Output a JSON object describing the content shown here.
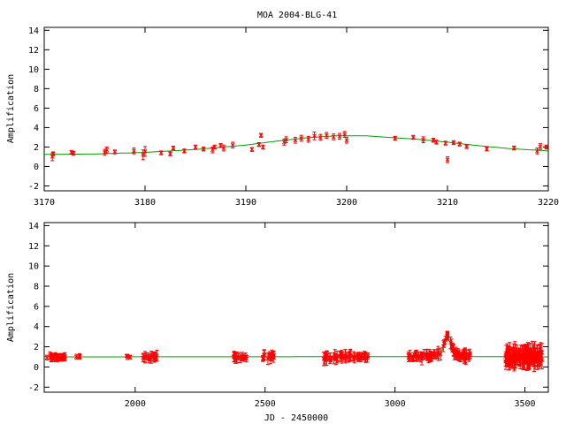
{
  "title": "MOA 2004-BLG-41",
  "xlabel": "JD - 2450000",
  "colors": {
    "data": "#ff0000",
    "model": "#00a000",
    "axes": "#000000"
  },
  "chart_data": [
    {
      "type": "scatter",
      "ylabel": "Amplification",
      "xlim": [
        3170,
        3220
      ],
      "ylim": [
        -2.5,
        14.3
      ],
      "xticks": [
        3170,
        3180,
        3190,
        3200,
        3210,
        3220
      ],
      "yticks": [
        -2,
        0,
        2,
        4,
        6,
        8,
        10,
        12,
        14
      ],
      "grid": false,
      "model": {
        "name": "",
        "x": [
          3170,
          3175,
          3180,
          3185,
          3190,
          3193,
          3196,
          3199,
          3202,
          3204,
          3207,
          3210,
          3213,
          3216,
          3220
        ],
        "y": [
          1.25,
          1.28,
          1.45,
          1.75,
          2.2,
          2.6,
          2.95,
          3.15,
          3.15,
          3.0,
          2.8,
          2.5,
          2.15,
          1.85,
          1.6
        ]
      },
      "series": [
        {
          "name": "",
          "points": [
            [
              3170.8,
              1.0,
              0.4
            ],
            [
              3170.9,
              1.3,
              0.2
            ],
            [
              3172.7,
              1.45,
              0.2
            ],
            [
              3172.9,
              1.35,
              0.2
            ],
            [
              3176.0,
              1.45,
              0.3
            ],
            [
              3176.2,
              1.7,
              0.3
            ],
            [
              3177.0,
              1.5,
              0.2
            ],
            [
              3178.9,
              1.6,
              0.3
            ],
            [
              3179.8,
              1.2,
              0.5
            ],
            [
              3180.0,
              1.55,
              0.5
            ],
            [
              3181.6,
              1.4,
              0.2
            ],
            [
              3182.5,
              1.3,
              0.2
            ],
            [
              3182.8,
              1.9,
              0.2
            ],
            [
              3183.9,
              1.6,
              0.2
            ],
            [
              3185.0,
              2.0,
              0.2
            ],
            [
              3185.8,
              1.8,
              0.2
            ],
            [
              3186.7,
              1.7,
              0.3
            ],
            [
              3186.9,
              2.0,
              0.2
            ],
            [
              3187.5,
              2.15,
              0.2
            ],
            [
              3187.8,
              1.9,
              0.3
            ],
            [
              3188.7,
              2.2,
              0.3
            ],
            [
              3190.6,
              1.75,
              0.2
            ],
            [
              3191.3,
              2.25,
              0.2
            ],
            [
              3191.5,
              3.2,
              0.2
            ],
            [
              3191.7,
              2.0,
              0.2
            ],
            [
              3193.8,
              2.5,
              0.3
            ],
            [
              3194.0,
              2.75,
              0.3
            ],
            [
              3194.9,
              2.7,
              0.3
            ],
            [
              3195.5,
              2.9,
              0.3
            ],
            [
              3196.2,
              2.8,
              0.3
            ],
            [
              3196.8,
              3.15,
              0.4
            ],
            [
              3197.4,
              3.0,
              0.3
            ],
            [
              3198.0,
              3.2,
              0.3
            ],
            [
              3198.7,
              3.05,
              0.3
            ],
            [
              3199.3,
              3.1,
              0.3
            ],
            [
              3199.8,
              3.3,
              0.3
            ],
            [
              3200.0,
              2.7,
              0.3
            ],
            [
              3204.8,
              2.9,
              0.2
            ],
            [
              3206.6,
              3.0,
              0.2
            ],
            [
              3207.6,
              2.75,
              0.3
            ],
            [
              3208.6,
              2.7,
              0.2
            ],
            [
              3208.9,
              2.5,
              0.2
            ],
            [
              3209.8,
              2.4,
              0.2
            ],
            [
              3210.0,
              0.7,
              0.3
            ],
            [
              3210.6,
              2.45,
              0.2
            ],
            [
              3211.2,
              2.3,
              0.2
            ],
            [
              3211.9,
              2.05,
              0.2
            ],
            [
              3213.9,
              1.8,
              0.2
            ],
            [
              3216.6,
              1.9,
              0.2
            ],
            [
              3218.9,
              1.6,
              0.3
            ],
            [
              3219.2,
              2.05,
              0.3
            ],
            [
              3219.8,
              2.0,
              0.2
            ]
          ]
        }
      ]
    },
    {
      "type": "scatter",
      "ylabel": "Amplification",
      "xlim": [
        1650,
        3590
      ],
      "ylim": [
        -2.5,
        14.3
      ],
      "xticks": [
        2000,
        2500,
        3000,
        3500
      ],
      "yticks": [
        -2,
        0,
        2,
        4,
        6,
        8,
        10,
        12,
        14
      ],
      "grid": false,
      "model": {
        "name": "",
        "x": [
          1650,
          3100,
          3150,
          3170,
          3185,
          3195,
          3200,
          3205,
          3215,
          3230,
          3260,
          3300,
          3590
        ],
        "y": [
          1.0,
          1.02,
          1.1,
          1.25,
          1.8,
          2.9,
          3.15,
          3.0,
          2.2,
          1.4,
          1.1,
          1.03,
          1.0
        ]
      },
      "clusters": [
        {
          "x0": 1660,
          "x1": 1730,
          "n": 30,
          "err": 0.3
        },
        {
          "x0": 1770,
          "x1": 1790,
          "n": 4,
          "err": 0.2
        },
        {
          "x0": 1965,
          "x1": 1985,
          "n": 4,
          "err": 0.2
        },
        {
          "x0": 2030,
          "x1": 2095,
          "n": 18,
          "err": 0.35
        },
        {
          "x0": 2365,
          "x1": 2430,
          "n": 18,
          "err": 0.35
        },
        {
          "x0": 2480,
          "x1": 2535,
          "n": 14,
          "err": 0.4
        },
        {
          "x0": 2725,
          "x1": 2830,
          "n": 35,
          "err": 0.45
        },
        {
          "x0": 2840,
          "x1": 2900,
          "n": 20,
          "err": 0.35
        },
        {
          "x0": 3050,
          "x1": 3290,
          "n": 90,
          "err": 0.4
        },
        {
          "x0": 3425,
          "x1": 3570,
          "n": 120,
          "err": 0.8
        }
      ]
    }
  ]
}
